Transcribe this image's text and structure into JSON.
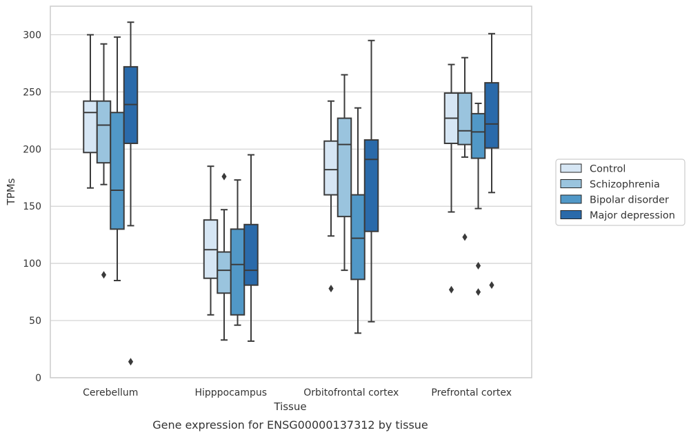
{
  "chart_data": {
    "type": "box",
    "xlabel": "Tissue",
    "ylabel": "TPMs",
    "caption": "Gene expression for ENSG00000137312 by tissue",
    "ylim": [
      0,
      325
    ],
    "yticks": [
      0,
      50,
      100,
      150,
      200,
      250,
      300
    ],
    "grid": "horizontal",
    "legend_position": "right",
    "categories": [
      "Cerebellum",
      "Hipppocampus",
      "Orbitofrontal cortex",
      "Prefrontal cortex"
    ],
    "series": [
      {
        "name": "Control",
        "color": "#d6e6f4",
        "boxes": [
          {
            "whisker_low": 166,
            "q1": 197,
            "median": 232,
            "q3": 242,
            "whisker_high": 300,
            "outliers": []
          },
          {
            "whisker_low": 55,
            "q1": 87,
            "median": 112,
            "q3": 138,
            "whisker_high": 185,
            "outliers": []
          },
          {
            "whisker_low": 124,
            "q1": 160,
            "median": 182,
            "q3": 207,
            "whisker_high": 242,
            "outliers": [
              78
            ]
          },
          {
            "whisker_low": 145,
            "q1": 205,
            "median": 227,
            "q3": 249,
            "whisker_high": 274,
            "outliers": [
              77
            ]
          }
        ]
      },
      {
        "name": "Schizophrenia",
        "color": "#9ac4de",
        "boxes": [
          {
            "whisker_low": 169,
            "q1": 188,
            "median": 221,
            "q3": 242,
            "whisker_high": 292,
            "outliers": [
              90
            ]
          },
          {
            "whisker_low": 33,
            "q1": 74,
            "median": 94,
            "q3": 110,
            "whisker_high": 147,
            "outliers": [
              176
            ]
          },
          {
            "whisker_low": 94,
            "q1": 141,
            "median": 204,
            "q3": 227,
            "whisker_high": 265,
            "outliers": []
          },
          {
            "whisker_low": 193,
            "q1": 204,
            "median": 216,
            "q3": 249,
            "whisker_high": 280,
            "outliers": [
              123
            ]
          }
        ]
      },
      {
        "name": "Bipolar disorder",
        "color": "#5198c7",
        "boxes": [
          {
            "whisker_low": 85,
            "q1": 130,
            "median": 164,
            "q3": 232,
            "whisker_high": 298,
            "outliers": []
          },
          {
            "whisker_low": 46,
            "q1": 55,
            "median": 99,
            "q3": 130,
            "whisker_high": 173,
            "outliers": []
          },
          {
            "whisker_low": 39,
            "q1": 86,
            "median": 122,
            "q3": 160,
            "whisker_high": 236,
            "outliers": []
          },
          {
            "whisker_low": 148,
            "q1": 192,
            "median": 215,
            "q3": 231,
            "whisker_high": 240,
            "outliers": [
              98,
              75
            ]
          }
        ]
      },
      {
        "name": "Major depression",
        "color": "#2a6aaa",
        "boxes": [
          {
            "whisker_low": 133,
            "q1": 205,
            "median": 239,
            "q3": 272,
            "whisker_high": 311,
            "outliers": [
              14
            ]
          },
          {
            "whisker_low": 32,
            "q1": 81,
            "median": 94,
            "q3": 134,
            "whisker_high": 195,
            "outliers": []
          },
          {
            "whisker_low": 49,
            "q1": 128,
            "median": 191,
            "q3": 208,
            "whisker_high": 295,
            "outliers": []
          },
          {
            "whisker_low": 162,
            "q1": 201,
            "median": 222,
            "q3": 258,
            "whisker_high": 301,
            "outliers": [
              81
            ]
          }
        ]
      }
    ]
  }
}
